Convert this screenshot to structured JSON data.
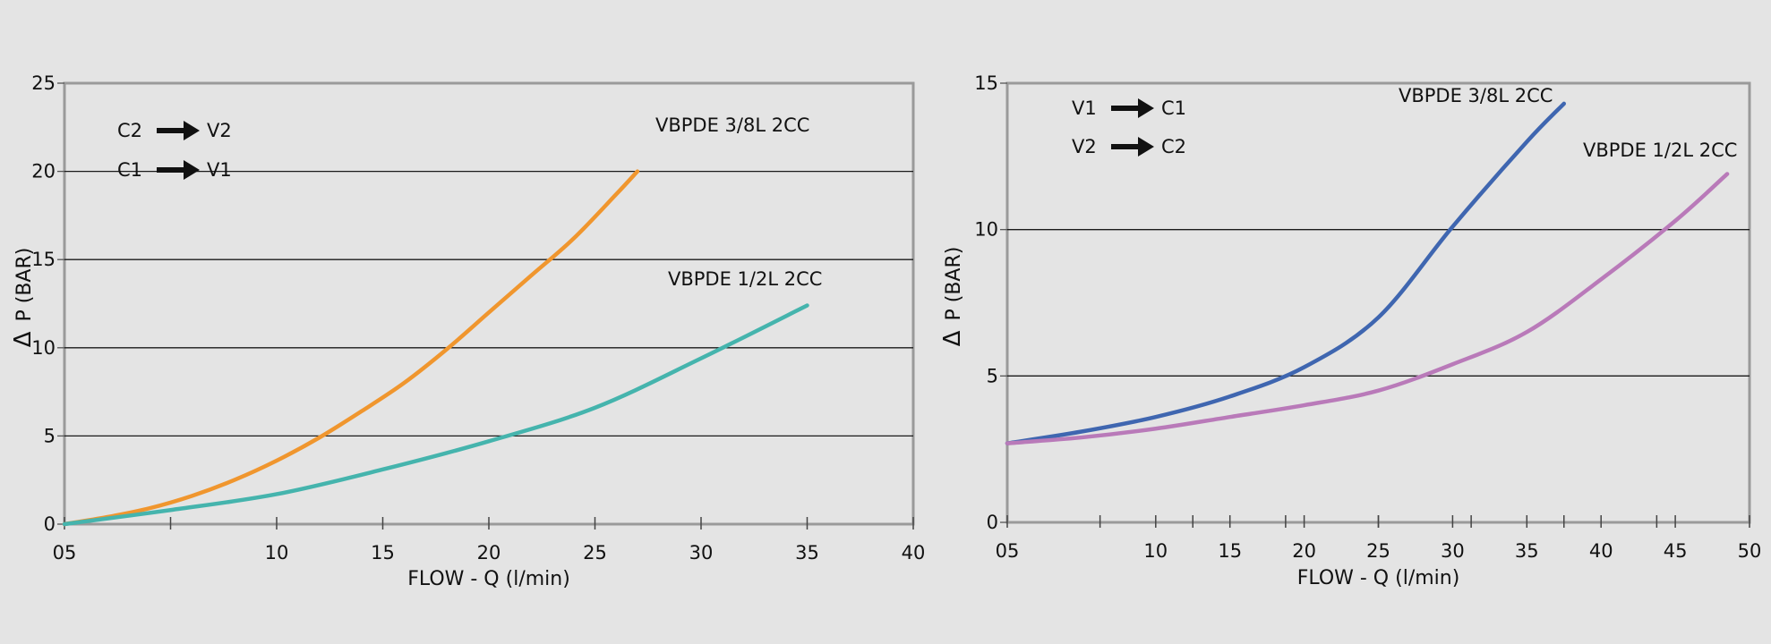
{
  "chart_data": [
    {
      "type": "line",
      "xlabel": "FLOW - Q (l/min)",
      "ylabel": "P (BAR)",
      "ylabel_symbol": "Δ",
      "xlim": [
        0,
        40
      ],
      "ylim": [
        0,
        25
      ],
      "x_tick_labels": [
        {
          "x": 0,
          "label": "05"
        },
        {
          "x": 10,
          "label": "10"
        },
        {
          "x": 15,
          "label": "15"
        },
        {
          "x": 20,
          "label": "20"
        },
        {
          "x": 25,
          "label": "25"
        },
        {
          "x": 30,
          "label": "30"
        },
        {
          "x": 35,
          "label": "35"
        },
        {
          "x": 40,
          "label": "40"
        }
      ],
      "x_minor_ticks": [
        5
      ],
      "y_ticks": [
        0,
        5,
        10,
        15,
        20,
        25
      ],
      "grid": "horizontal",
      "legend": [
        {
          "from": "C2",
          "to": "V2"
        },
        {
          "from": "C1",
          "to": "V1"
        }
      ],
      "series": [
        {
          "name": "VBPDE 3/8L 2CC",
          "color": "#f0962e",
          "x": [
            0,
            2,
            4,
            6,
            8,
            10,
            12,
            14,
            16,
            18,
            20,
            22,
            24,
            26,
            27
          ],
          "y": [
            0,
            0.4,
            0.9,
            1.6,
            2.5,
            3.6,
            4.9,
            6.4,
            8.0,
            9.9,
            12.0,
            14.1,
            16.2,
            18.7,
            20.0
          ]
        },
        {
          "name": "VBPDE 1/2L 2CC",
          "color": "#45b4ad",
          "x": [
            0,
            5,
            10,
            15,
            20,
            25,
            30,
            35
          ],
          "y": [
            0,
            0.8,
            1.7,
            3.1,
            4.7,
            6.6,
            9.4,
            12.4
          ]
        }
      ]
    },
    {
      "type": "line",
      "xlabel": "FLOW - Q (l/min)",
      "ylabel": "P (BAR)",
      "ylabel_symbol": "Δ",
      "xlim": [
        0,
        50
      ],
      "ylim": [
        0,
        15
      ],
      "x_tick_labels": [
        {
          "x": 0,
          "label": "05"
        },
        {
          "x": 10,
          "label": "10"
        },
        {
          "x": 15,
          "label": "15"
        },
        {
          "x": 20,
          "label": "20"
        },
        {
          "x": 25,
          "label": "25"
        },
        {
          "x": 30,
          "label": "30"
        },
        {
          "x": 35,
          "label": "35"
        },
        {
          "x": 40,
          "label": "40"
        },
        {
          "x": 45,
          "label": "45"
        },
        {
          "x": 50,
          "label": "50"
        }
      ],
      "x_minor_ticks": [
        6.25,
        12.5,
        18.75,
        25,
        31.25,
        37.5,
        43.75
      ],
      "y_ticks": [
        0,
        5,
        10,
        15
      ],
      "grid": "horizontal",
      "legend": [
        {
          "from": "V1",
          "to": "C1"
        },
        {
          "from": "V2",
          "to": "C2"
        }
      ],
      "series": [
        {
          "name": "VBPDE 3/8L 2CC",
          "color": "#3f66b0",
          "x": [
            0,
            5,
            10,
            15,
            20,
            25,
            30,
            35,
            37.5
          ],
          "y": [
            2.7,
            3.1,
            3.6,
            4.3,
            5.3,
            7.0,
            10.1,
            13.0,
            14.3
          ]
        },
        {
          "name": "VBPDE 1/2L 2CC",
          "color": "#b97ab9",
          "x": [
            0,
            5,
            10,
            15,
            20,
            25,
            30,
            35,
            40,
            45,
            48.5
          ],
          "y": [
            2.7,
            2.9,
            3.2,
            3.6,
            4.0,
            4.5,
            5.4,
            6.5,
            8.3,
            10.3,
            11.9
          ]
        }
      ]
    }
  ]
}
